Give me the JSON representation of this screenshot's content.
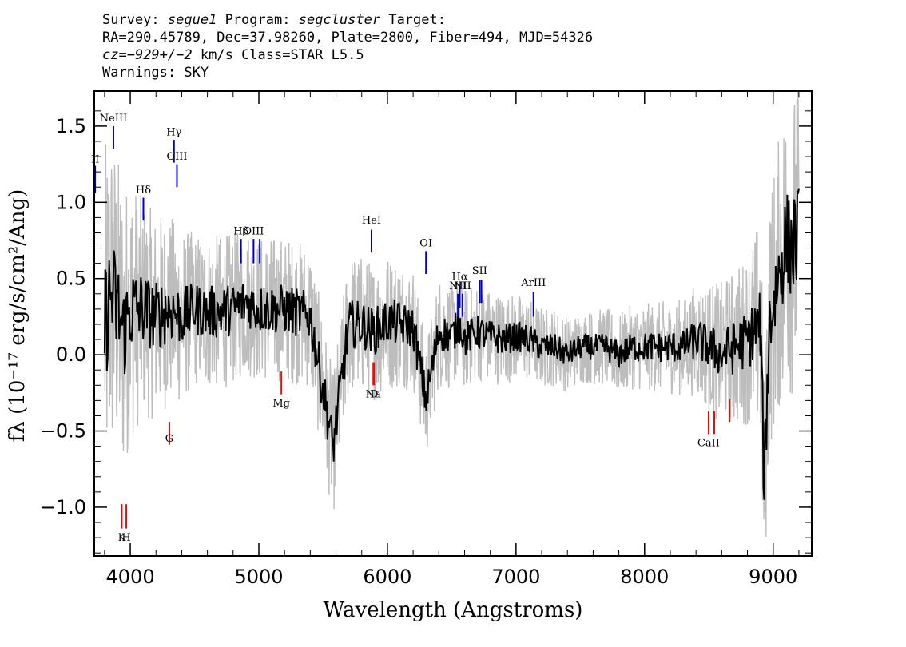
{
  "header": {
    "line1": {
      "survey_label": "Survey:",
      "survey": "segue1",
      "program_label": "Program:",
      "program": "segcluster",
      "target_label": "Target:"
    },
    "line2": "RA=290.45789, Dec=37.98260, Plate=2800, Fiber=494, MJD=54326",
    "line3": {
      "cz_label": "cz=",
      "cz_value": "−929+/−2",
      "cz_unit": "km/s",
      "class": "Class=STAR L5.5"
    },
    "line4": "Warnings: SKY"
  },
  "chart_data": {
    "type": "line",
    "xlabel": "Wavelength (Angstroms)",
    "ylabel": "fλ (10⁻¹⁷ erg/s/cm²/Ang)",
    "xlim": [
      3720,
      9300
    ],
    "ylim": [
      -1.32,
      1.73
    ],
    "x_ticks": [
      4000,
      5000,
      6000,
      7000,
      8000,
      9000
    ],
    "y_ticks": [
      1.5,
      1.0,
      0.5,
      0.0,
      -0.5,
      -1.0
    ],
    "y_tick_labels": [
      "1.5",
      "1.0",
      "0.5",
      "0.0",
      "−0.5",
      "−1.0"
    ],
    "grid": false,
    "legend": "none",
    "colors": {
      "flux": "#000000",
      "error": "#bdbdbd",
      "emission": "#0000cc",
      "absorption": "#e01010"
    },
    "series": [
      {
        "role": "flux",
        "x": [
          3800,
          3850,
          3900,
          3950,
          4000,
          4100,
          4200,
          4300,
          4400,
          4500,
          4600,
          4700,
          4800,
          4900,
          5000,
          5200,
          5400,
          5577,
          5700,
          5800,
          5893,
          6000,
          6100,
          6200,
          6300,
          6400,
          6500,
          6563,
          6600,
          6700,
          6800,
          6900,
          7000,
          7100,
          7200,
          7300,
          7400,
          7500,
          7600,
          7700,
          7800,
          7900,
          8000,
          8100,
          8200,
          8300,
          8400,
          8500,
          8600,
          8700,
          8800,
          8900,
          8930,
          8970,
          9050,
          9100,
          9150,
          9200
        ],
        "y": [
          0.2,
          0.4,
          0.3,
          0.15,
          0.3,
          0.3,
          0.25,
          0.3,
          0.25,
          0.3,
          0.28,
          0.28,
          0.3,
          0.35,
          0.3,
          0.3,
          0.25,
          -0.6,
          0.2,
          0.2,
          0.15,
          0.22,
          0.2,
          0.18,
          -0.3,
          0.15,
          0.12,
          0.2,
          0.1,
          0.15,
          0.12,
          0.1,
          0.12,
          0.1,
          0.05,
          0.05,
          0.0,
          0.05,
          0.05,
          0.05,
          0.0,
          0.05,
          0.05,
          0.05,
          0.05,
          0.05,
          0.1,
          0.05,
          0.0,
          0.05,
          0.1,
          0.2,
          -0.85,
          0.2,
          0.55,
          0.75,
          0.7,
          0.8
        ]
      },
      {
        "role": "error",
        "x": [
          3750,
          3850,
          3950,
          4100,
          4300,
          4500,
          4700,
          5000,
          5500,
          6000,
          6500,
          7000,
          7500,
          8000,
          8300,
          8600,
          8800,
          8900,
          9000,
          9100,
          9200
        ],
        "y": [
          0.75,
          0.7,
          0.6,
          0.45,
          0.4,
          0.32,
          0.32,
          0.3,
          0.3,
          0.28,
          0.22,
          0.18,
          0.15,
          0.18,
          0.2,
          0.3,
          0.35,
          0.45,
          0.55,
          0.6,
          0.65
        ]
      }
    ],
    "emission_lines": [
      {
        "label": "II",
        "x": 3727,
        "y0": 1.06,
        "y1": 1.24,
        "label_y": 1.26
      },
      {
        "label": "NeIII",
        "x": 3869,
        "y0": 1.35,
        "y1": 1.5,
        "label_y": 1.53
      },
      {
        "label": "Hγ",
        "x": 4340,
        "y0": 1.26,
        "y1": 1.41,
        "label_y": 1.44
      },
      {
        "label": "OIII",
        "x": 4363,
        "y0": 1.1,
        "y1": 1.25,
        "label_y": 1.28
      },
      {
        "label": "Hδ",
        "x": 4102,
        "y0": 0.88,
        "y1": 1.03,
        "label_y": 1.06
      },
      {
        "label": "Hβ",
        "x": 4861,
        "y0": 0.6,
        "y1": 0.76,
        "label_y": 0.79
      },
      {
        "label": "OIII",
        "x": 4959,
        "y0": 0.6,
        "y1": 0.76,
        "label_y": 0.79
      },
      {
        "label": "",
        "x": 5007,
        "y0": 0.6,
        "y1": 0.76,
        "label_y": 0.79
      },
      {
        "label": "HeI",
        "x": 5876,
        "y0": 0.67,
        "y1": 0.82,
        "label_y": 0.86
      },
      {
        "label": "OI",
        "x": 6300,
        "y0": 0.53,
        "y1": 0.68,
        "label_y": 0.71
      },
      {
        "label": "NII",
        "x": 6548,
        "y0": 0.25,
        "y1": 0.4,
        "label_y": 0.43
      },
      {
        "label": "Hα",
        "x": 6563,
        "y0": 0.31,
        "y1": 0.46,
        "label_y": 0.49
      },
      {
        "label": "NII",
        "x": 6584,
        "y0": 0.25,
        "y1": 0.4,
        "label_y": 0.43
      },
      {
        "label": "SII",
        "x": 6717,
        "y0": 0.34,
        "y1": 0.49,
        "label_y": 0.53
      },
      {
        "label": "",
        "x": 6731,
        "y0": 0.34,
        "y1": 0.49,
        "label_y": 0.53
      },
      {
        "label": "ArIII",
        "x": 7136,
        "y0": 0.25,
        "y1": 0.41,
        "label_y": 0.45
      }
    ],
    "absorption_lines": [
      {
        "label": "K",
        "x": 3934,
        "y0": -1.14,
        "y1": -0.98,
        "label_y": -1.22
      },
      {
        "label": "H",
        "x": 3969,
        "y0": -1.14,
        "y1": -0.98,
        "label_y": -1.22
      },
      {
        "label": "G",
        "x": 4304,
        "y0": -0.59,
        "y1": -0.44,
        "label_y": -0.57
      },
      {
        "label": "Mg",
        "x": 5175,
        "y0": -0.26,
        "y1": -0.11,
        "label_y": -0.34
      },
      {
        "label": "Na",
        "x": 5890,
        "y0": -0.2,
        "y1": -0.05,
        "label_y": -0.28
      },
      {
        "label": "D",
        "x": 5896,
        "y0": -0.2,
        "y1": -0.05,
        "label_y": -0.28
      },
      {
        "label": "CaII",
        "x": 8498,
        "y0": -0.52,
        "y1": -0.37,
        "label_y": -0.6
      },
      {
        "label": "",
        "x": 8542,
        "y0": -0.52,
        "y1": -0.37,
        "label_y": -0.6
      },
      {
        "label": "",
        "x": 8662,
        "y0": -0.44,
        "y1": -0.29,
        "label_y": -0.6
      }
    ]
  }
}
